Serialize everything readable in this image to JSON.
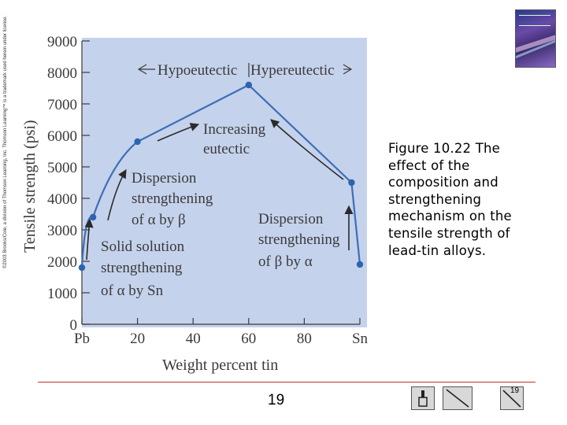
{
  "copyright": "©2003 Brooks/Cole, a division of Thomson Learning, Inc. Thomson Learning™ is a trademark used herein under license.",
  "caption": "Figure 10.22 The effect of the composition and strengthening mechanism on the tensile strength of lead-tin alloys.",
  "page_number": "19",
  "nav_count": "19",
  "colors": {
    "plot_bg": "#c5d2ec",
    "curve": "#3b6fb6",
    "point": "#2e64ae",
    "text": "#3a3a3a",
    "divider": "#c03030"
  },
  "chart_data": {
    "type": "line",
    "title": "",
    "xlabel": "Weight percent tin",
    "ylabel": "Tensile strength (psi)",
    "xlim": [
      0,
      100
    ],
    "ylim": [
      0,
      9000
    ],
    "x_ticks": [
      {
        "value": 0,
        "label": "Pb"
      },
      {
        "value": 20,
        "label": "20"
      },
      {
        "value": 40,
        "label": "40"
      },
      {
        "value": 60,
        "label": "60"
      },
      {
        "value": 80,
        "label": "80"
      },
      {
        "value": 100,
        "label": "Sn"
      }
    ],
    "y_ticks": [
      0,
      1000,
      2000,
      3000,
      4000,
      5000,
      6000,
      7000,
      8000,
      9000
    ],
    "series": [
      {
        "name": "Tensile strength",
        "x": [
          0,
          4,
          20,
          60,
          97,
          100
        ],
        "y": [
          1800,
          3400,
          5800,
          7600,
          4500,
          1900
        ]
      }
    ],
    "annotations": [
      {
        "text": "Hypoeutectic"
      },
      {
        "text": "Hypereutectic"
      },
      {
        "lines": [
          "Increasing",
          "eutectic"
        ]
      },
      {
        "lines": [
          "Dispersion",
          "strengthening",
          "of α by β"
        ]
      },
      {
        "lines": [
          "Solid solution",
          "strengthening",
          "of α by Sn"
        ]
      },
      {
        "lines": [
          "Dispersion",
          "strengthening",
          "of β by α"
        ]
      }
    ]
  }
}
